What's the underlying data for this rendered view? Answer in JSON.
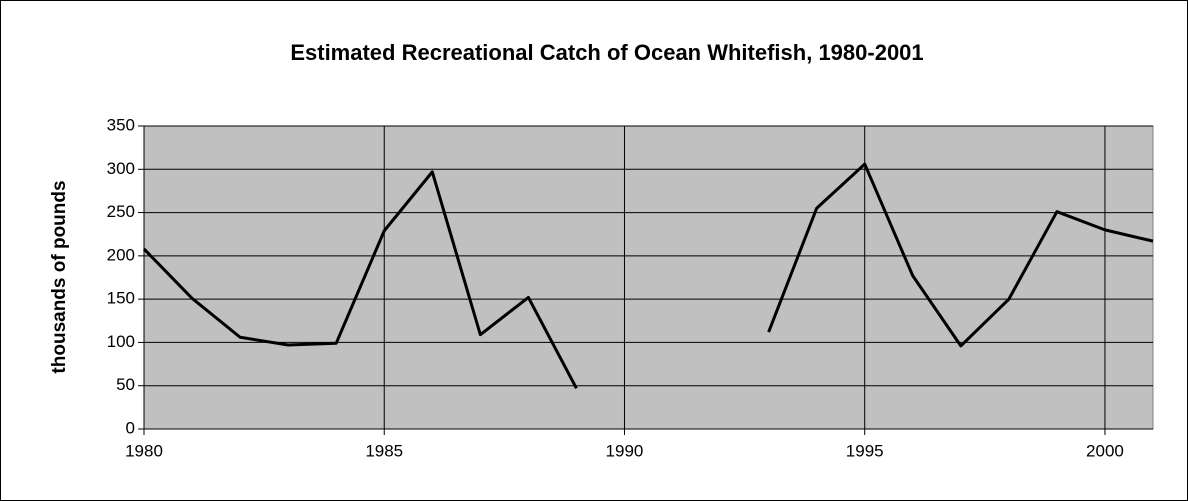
{
  "chart_data": {
    "type": "line",
    "title": "Estimated Recreational Catch of Ocean Whitefish, 1980-2001",
    "y_label": "thousands of pounds",
    "x": [
      1980,
      1981,
      1982,
      1983,
      1984,
      1985,
      1986,
      1987,
      1988,
      1989,
      1990,
      1991,
      1992,
      1993,
      1994,
      1995,
      1996,
      1997,
      1998,
      1999,
      2000,
      2001
    ],
    "values": [
      208,
      151,
      106,
      97,
      99,
      229,
      297,
      109,
      152,
      47,
      null,
      null,
      null,
      112,
      255,
      306,
      177,
      96,
      150,
      251,
      230,
      217
    ],
    "color": "#000000",
    "xlim": [
      1980,
      2001
    ],
    "xticks": [
      1980,
      1985,
      1990,
      1995,
      2000
    ],
    "ylim": [
      0,
      350
    ],
    "yticks": [
      0,
      50,
      100,
      150,
      200,
      250,
      300,
      350
    ],
    "grid": true,
    "plot_background": "#c0c0c0"
  }
}
